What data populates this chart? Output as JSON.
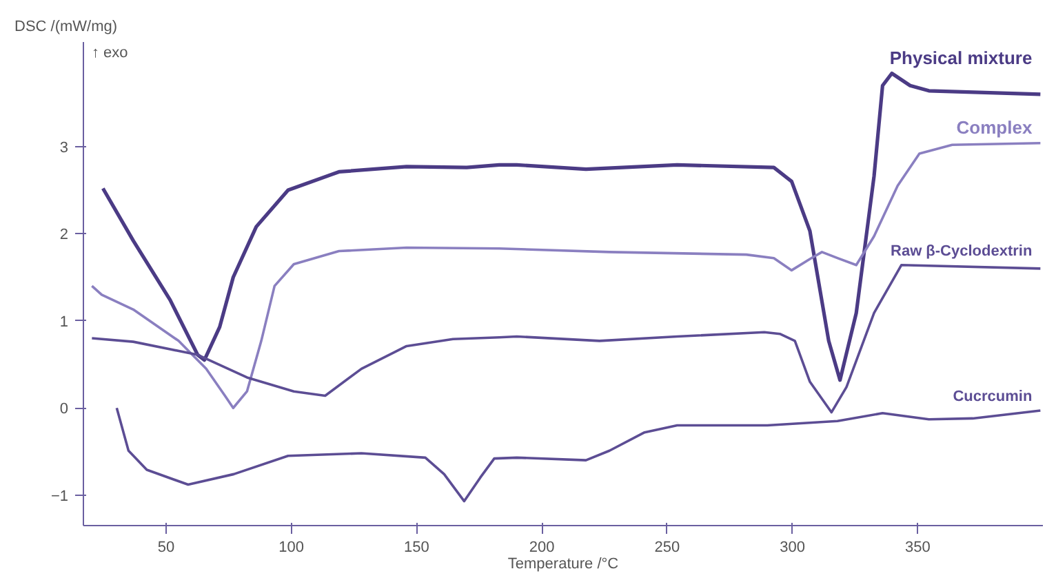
{
  "chart_data": {
    "type": "line",
    "ylabel": "DSC /(mW/mg)",
    "xlabel": "Temperature /°C",
    "annotations": [
      "↑ exo"
    ],
    "xlim": [
      17,
      400
    ],
    "ylim": [
      -1.35,
      4.2
    ],
    "xticks": [
      50,
      100,
      150,
      200,
      250,
      300,
      350
    ],
    "yticks": [
      -1,
      0,
      1,
      2,
      3
    ],
    "grid": false,
    "line_style": "solid",
    "marker": "none",
    "series": [
      {
        "name": "Physical mixture",
        "color": "#4b3b85",
        "x": [
          24.8,
          36.9,
          51.6,
          62.6,
          65.3,
          71.4,
          76.8,
          86,
          98.7,
          119,
          146,
          170,
          183,
          190,
          217.6,
          254,
          292.6,
          299.7,
          307,
          314.5,
          319,
          325.5,
          332.6,
          336,
          339.7,
          347,
          354.5,
          399
        ],
        "values": [
          2.52,
          1.92,
          1.24,
          0.61,
          0.55,
          0.93,
          1.5,
          2.08,
          2.5,
          2.71,
          2.77,
          2.76,
          2.79,
          2.79,
          2.74,
          2.79,
          2.76,
          2.6,
          2.03,
          0.77,
          0.32,
          1.09,
          2.66,
          3.7,
          3.84,
          3.7,
          3.64,
          3.6
        ]
      },
      {
        "name": "Complex",
        "color": "#8a7fc0",
        "x": [
          20.4,
          24.3,
          36.9,
          55,
          66,
          73.5,
          76.8,
          82.3,
          88,
          93.3,
          101,
          119,
          146,
          183,
          227,
          281.6,
          292.6,
          299.7,
          307,
          311.8,
          318,
          325.5,
          332.6,
          342,
          350.7,
          363.8,
          399
        ],
        "values": [
          1.4,
          1.3,
          1.13,
          0.77,
          0.45,
          0.14,
          0,
          0.19,
          0.77,
          1.4,
          1.65,
          1.8,
          1.84,
          1.83,
          1.79,
          1.76,
          1.72,
          1.58,
          1.71,
          1.79,
          1.72,
          1.64,
          1.97,
          2.55,
          2.92,
          3.02,
          3.04
        ]
      },
      {
        "name": "Raw β-Cyclodextrin",
        "color": "#5c4d94",
        "x": [
          20.4,
          36.9,
          62.6,
          82.3,
          101,
          113.5,
          128,
          146,
          164.5,
          183,
          190,
          223,
          254,
          288.8,
          295,
          301,
          307,
          315.6,
          321.6,
          332.6,
          343.5,
          399
        ],
        "values": [
          0.8,
          0.76,
          0.61,
          0.35,
          0.19,
          0.14,
          0.45,
          0.71,
          0.79,
          0.81,
          0.82,
          0.77,
          0.82,
          0.87,
          0.85,
          0.77,
          0.3,
          -0.05,
          0.24,
          1.09,
          1.64,
          1.6
        ]
      },
      {
        "name": "Cucrcumin",
        "color": "#5c4d94",
        "x": [
          30.3,
          35,
          42.3,
          58.8,
          77,
          98.7,
          128,
          153.5,
          161,
          169,
          175.4,
          181,
          190,
          217.6,
          227,
          241,
          254,
          290,
          318,
          336,
          354.5,
          372,
          399
        ],
        "values": [
          0,
          -0.49,
          -0.71,
          -0.88,
          -0.76,
          -0.55,
          -0.52,
          -0.57,
          -0.76,
          -1.07,
          -0.8,
          -0.58,
          -0.57,
          -0.6,
          -0.49,
          -0.28,
          -0.2,
          -0.2,
          -0.15,
          -0.06,
          -0.13,
          -0.12,
          -0.03
        ]
      }
    ]
  }
}
